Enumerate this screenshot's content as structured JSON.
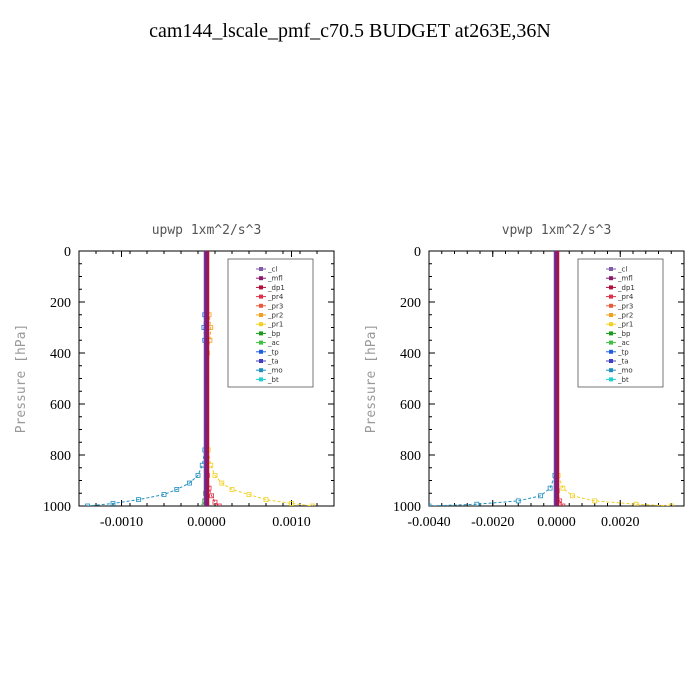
{
  "title": "cam144_lscale_pmf_c70.5  BUDGET at263E,36N",
  "colors": {
    "_cl": "#7f5aa8",
    "_mfl": "#8b1a6b",
    "_dp1": "#b0103a",
    "_pr4": "#e03048",
    "_pr3": "#e85a3a",
    "_pr2": "#f0a020",
    "_pr1": "#f2d020",
    "_bp": "#1a9a1a",
    "_ac": "#40c040",
    "_tp": "#2060e0",
    "_ta": "#4040c0",
    "_mo": "#2090c0",
    "_bt": "#20d0d0"
  },
  "chart_data": [
    {
      "type": "line",
      "title": "upwp   1xm^2/s^3",
      "ylabel": "Pressure [hPa]",
      "xlabel": "",
      "xlim": [
        -0.0015,
        0.0015
      ],
      "ylim": [
        1000,
        0
      ],
      "xticks": [
        -0.001,
        0.0,
        0.001
      ],
      "xtick_labels": [
        "-0.0010",
        "0.0000",
        "0.0010"
      ],
      "yticks": [
        0,
        200,
        400,
        600,
        800,
        1000
      ],
      "ytick_labels": [
        "0",
        "200",
        "400",
        "600",
        "800",
        "1000"
      ],
      "legend": [
        "_cl",
        "_mfl",
        "_dp1",
        "_pr4",
        "_pr3",
        "_pr2",
        "_pr1",
        "_bp",
        "_ac",
        "_tp",
        "_ta",
        "_mo",
        "_bt"
      ],
      "legend_position": "top-right",
      "series": [
        {
          "name": "_mo",
          "x": [
            0,
            0,
            -2e-05,
            -5e-05,
            -0.0001,
            -0.0002,
            -0.00035,
            -0.0005,
            -0.0008,
            -0.0011,
            -0.0014
          ],
          "y": [
            0,
            700,
            780,
            840,
            880,
            910,
            935,
            955,
            975,
            990,
            1000
          ]
        },
        {
          "name": "_tp",
          "x": [
            0,
            -2e-05,
            -3e-05,
            -2e-05,
            0,
            0
          ],
          "y": [
            200,
            250,
            300,
            350,
            400,
            500
          ]
        },
        {
          "name": "_pr1",
          "x": [
            0,
            0,
            2e-05,
            5e-05,
            0.0001,
            0.00018,
            0.0003,
            0.0005,
            0.0007,
            0.001,
            0.00125
          ],
          "y": [
            0,
            700,
            780,
            840,
            880,
            910,
            935,
            955,
            975,
            990,
            1000
          ]
        },
        {
          "name": "_pr2",
          "x": [
            0,
            3e-05,
            5e-05,
            4e-05,
            1e-05,
            0
          ],
          "y": [
            200,
            250,
            300,
            350,
            400,
            500
          ]
        },
        {
          "name": "_pr4",
          "x": [
            0,
            1e-05,
            3e-05,
            6e-05,
            0.0001,
            0.00015
          ],
          "y": [
            800,
            880,
            930,
            960,
            985,
            1000
          ]
        },
        {
          "name": "_bp",
          "x": [
            0,
            -1e-05,
            -2e-05,
            -3e-05
          ],
          "y": [
            900,
            950,
            980,
            1000
          ]
        },
        {
          "name": "_mfl",
          "x": [
            0,
            0,
            0,
            0,
            0,
            0,
            0,
            0,
            0,
            0,
            0
          ],
          "y": [
            0,
            100,
            200,
            300,
            400,
            500,
            600,
            700,
            800,
            900,
            1000
          ]
        }
      ]
    },
    {
      "type": "line",
      "title": "vpwp   1xm^2/s^3",
      "ylabel": "Pressure [hPa]",
      "xlabel": "",
      "xlim": [
        -0.004,
        0.004
      ],
      "ylim": [
        1000,
        0
      ],
      "xticks": [
        -0.004,
        -0.002,
        0.0,
        0.002
      ],
      "xtick_labels": [
        "-0.0040",
        "-0.0020",
        "0.0000",
        "0.0020"
      ],
      "yticks": [
        0,
        200,
        400,
        600,
        800,
        1000
      ],
      "ytick_labels": [
        "0",
        "200",
        "400",
        "600",
        "800",
        "1000"
      ],
      "legend": [
        "_cl",
        "_mfl",
        "_dp1",
        "_pr4",
        "_pr3",
        "_pr2",
        "_pr1",
        "_bp",
        "_ac",
        "_tp",
        "_ta",
        "_mo",
        "_bt"
      ],
      "legend_position": "top-right",
      "series": [
        {
          "name": "_mo",
          "x": [
            0,
            0,
            -5e-05,
            -0.0002,
            -0.0005,
            -0.0012,
            -0.0025,
            -0.004
          ],
          "y": [
            0,
            800,
            880,
            930,
            960,
            980,
            993,
            1000
          ]
        },
        {
          "name": "_pr1",
          "x": [
            0,
            0,
            5e-05,
            0.0002,
            0.0005,
            0.0012,
            0.0025,
            0.0036
          ],
          "y": [
            0,
            800,
            880,
            930,
            960,
            980,
            993,
            1000
          ]
        },
        {
          "name": "_pr4",
          "x": [
            0,
            2e-05,
            0.0001,
            0.0002
          ],
          "y": [
            880,
            940,
            980,
            1000
          ]
        },
        {
          "name": "_mfl",
          "x": [
            0,
            0,
            0,
            0,
            0,
            0,
            0,
            0,
            0,
            0,
            0
          ],
          "y": [
            0,
            100,
            200,
            300,
            400,
            500,
            600,
            700,
            800,
            900,
            1000
          ]
        }
      ]
    }
  ]
}
